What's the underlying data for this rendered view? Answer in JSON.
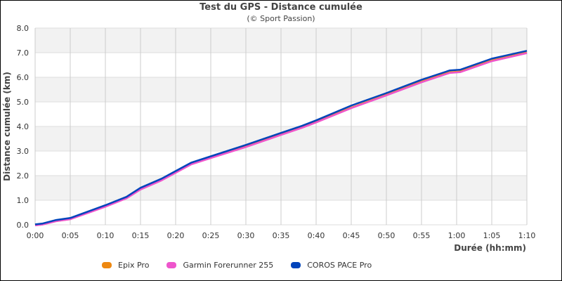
{
  "chart_data": {
    "type": "line",
    "title": "Test du GPS - Distance cumulée",
    "subtitle": "(© Sport Passion)",
    "xlabel": "Durée (hh:mm)",
    "ylabel": "Distance cumulée (km)",
    "xlim": [
      0,
      70
    ],
    "ylim": [
      0,
      8
    ],
    "x_ticks": [
      "0:00",
      "0:05",
      "0:10",
      "0:15",
      "0:20",
      "0:25",
      "0:30",
      "0:35",
      "0:40",
      "0:45",
      "0:50",
      "0:55",
      "1:00",
      "1:05",
      "1:10"
    ],
    "y_ticks": [
      "0.0",
      "1.0",
      "2.0",
      "3.0",
      "4.0",
      "5.0",
      "6.0",
      "7.0",
      "8.0"
    ],
    "grid": true,
    "legend_position": "bottom",
    "x_minutes": [
      0,
      1,
      3,
      5,
      10,
      13,
      15,
      18,
      20,
      22.2,
      25,
      30,
      35,
      38,
      40,
      45,
      50,
      55,
      59,
      60.5,
      65,
      70
    ],
    "series": [
      {
        "name": "Epix Pro",
        "color": "#ee8811",
        "values": [
          0.0,
          0.03,
          0.17,
          0.25,
          0.77,
          1.11,
          1.47,
          1.84,
          2.15,
          2.49,
          2.75,
          3.2,
          3.69,
          3.98,
          4.2,
          4.78,
          5.3,
          5.84,
          6.22,
          6.25,
          6.7,
          7.02
        ]
      },
      {
        "name": "Garmin Forerunner 255",
        "color": "#ee55cc",
        "values": [
          0.0,
          0.03,
          0.17,
          0.25,
          0.76,
          1.1,
          1.46,
          1.83,
          2.14,
          2.48,
          2.74,
          3.19,
          3.68,
          3.97,
          4.19,
          4.77,
          5.29,
          5.82,
          6.2,
          6.23,
          6.68,
          7.01
        ]
      },
      {
        "name": "COROS PACE Pro",
        "color": "#0044bb",
        "values": [
          0.0,
          0.03,
          0.18,
          0.26,
          0.78,
          1.12,
          1.49,
          1.86,
          2.17,
          2.51,
          2.77,
          3.23,
          3.72,
          4.01,
          4.23,
          4.83,
          5.34,
          5.88,
          6.26,
          6.29,
          6.74,
          7.06
        ]
      }
    ]
  },
  "legend": {
    "items": [
      {
        "label": "Epix Pro",
        "color": "#ee8811"
      },
      {
        "label": "Garmin Forerunner 255",
        "color": "#ee55cc"
      },
      {
        "label": "COROS PACE Pro",
        "color": "#0044bb"
      }
    ]
  }
}
